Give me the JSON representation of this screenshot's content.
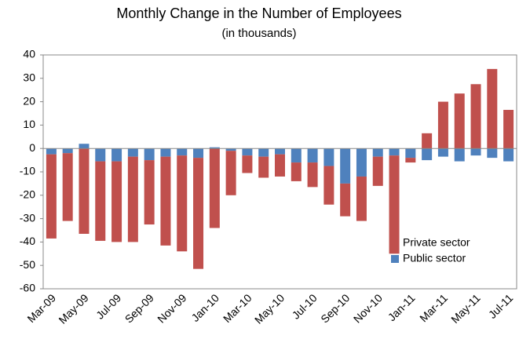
{
  "chart_data": {
    "type": "stacked_bar",
    "title": "Monthly Change in the Number of Employees",
    "subtitle": "(in thousands)",
    "categories": [
      "Mar-09",
      null,
      "May-09",
      null,
      "Jul-09",
      null,
      "Sep-09",
      null,
      "Nov-09",
      null,
      "Jan-10",
      null,
      "Mar-10",
      null,
      "May-10",
      null,
      "Jul-10",
      null,
      "Sep-10",
      null,
      "Nov-10",
      null,
      "Jan-11",
      null,
      "Mar-11",
      null,
      "May-11",
      null,
      "Jul-11"
    ],
    "series": [
      {
        "name": "Private sector",
        "color": "#c0504d",
        "values": [
          -36,
          -29,
          -36.5,
          -34,
          -34.5,
          -36.5,
          -27.5,
          -38,
          -41,
          -47.5,
          -34,
          -19,
          -7.5,
          -9,
          -9.5,
          -8,
          -10.5,
          -16.5,
          -14,
          -19,
          -12.5,
          -42,
          -2,
          6.5,
          20,
          23.5,
          27.5,
          34,
          16.5
        ]
      },
      {
        "name": "Public sector",
        "color": "#4f81bd",
        "values": [
          -2.5,
          -2,
          2,
          -5.5,
          -5.5,
          -3.5,
          -5,
          -3.5,
          -3,
          -4,
          0.5,
          -1,
          -3,
          -3.5,
          -2.5,
          -6,
          -6,
          -7.5,
          -15,
          -12,
          -3.5,
          -3,
          -4,
          -5,
          -3.5,
          -5.5,
          -3,
          -4,
          -5.5
        ]
      }
    ],
    "ylim": [
      -60,
      40
    ],
    "yticks": [
      -60,
      -50,
      -40,
      -30,
      -20,
      -10,
      0,
      10,
      20,
      30,
      40
    ],
    "grid": false,
    "legend": "lower right"
  }
}
